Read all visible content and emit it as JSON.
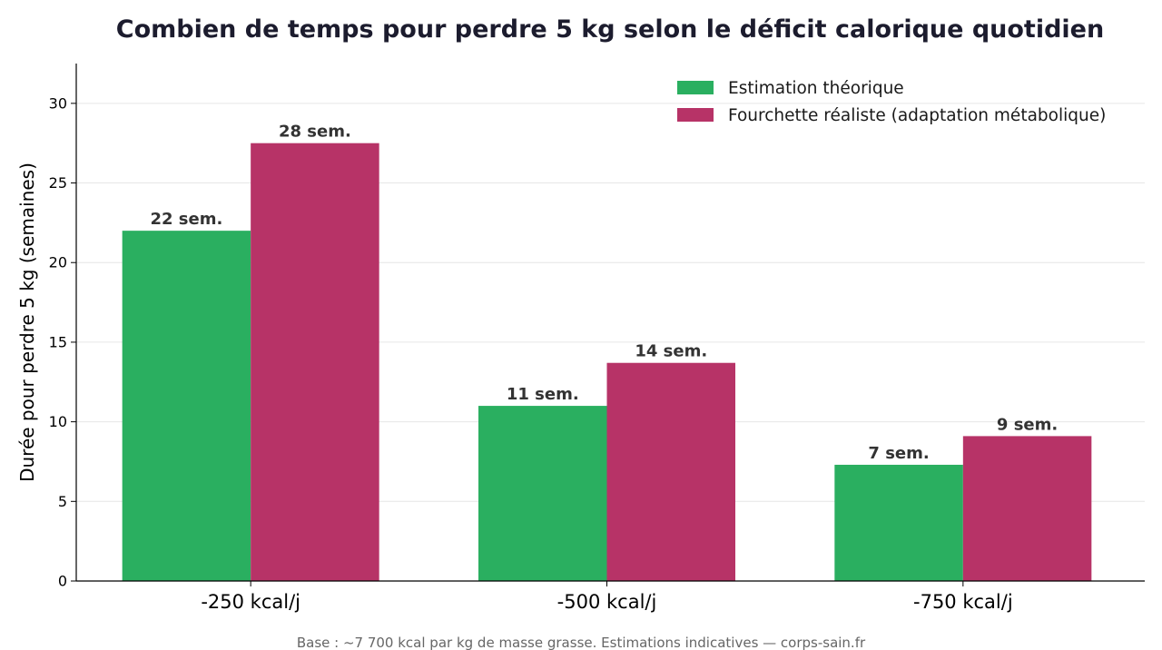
{
  "chart_data": {
    "type": "bar",
    "title": "Combien de temps pour perdre 5 kg selon le déficit calorique quotidien",
    "xlabel": "",
    "ylabel": "Durée pour perdre 5 kg (semaines)",
    "categories": [
      "-250 kcal/j",
      "-500 kcal/j",
      "-750 kcal/j"
    ],
    "series": [
      {
        "name": "Estimation théorique",
        "color": "#2aaf60",
        "values": [
          22.0,
          11.0,
          7.3
        ],
        "labels": [
          "22 sem.",
          "11 sem.",
          "7 sem."
        ]
      },
      {
        "name": "Fourchette réaliste (adaptation métabolique)",
        "color": "#b73367",
        "values": [
          27.5,
          13.7,
          9.1
        ],
        "labels": [
          "28 sem.",
          "14 sem.",
          "9 sem."
        ]
      }
    ],
    "ylim": [
      0,
      32.5
    ],
    "yticks": [
      0,
      5,
      10,
      15,
      20,
      25,
      30
    ],
    "grid": "y",
    "legend_position": "top-right",
    "footnote": "Base : ~7 700 kcal par kg de masse grasse. Estimations indicatives — corps-sain.fr"
  }
}
